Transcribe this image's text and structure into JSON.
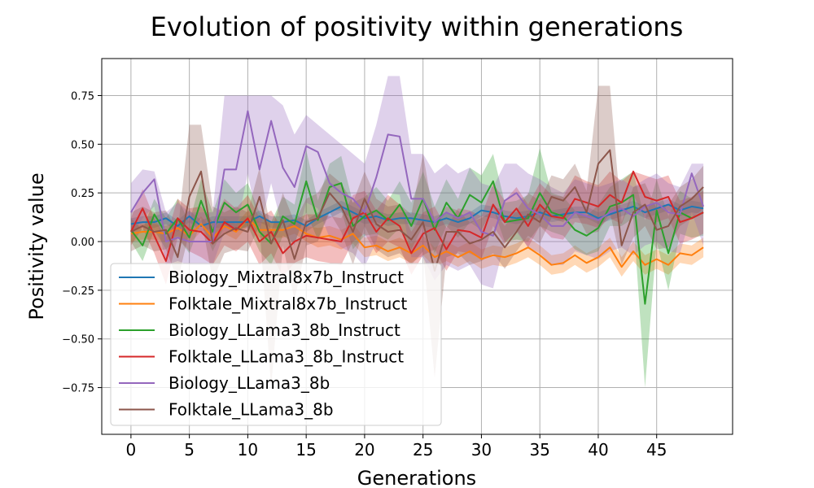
{
  "chart_data": {
    "type": "line",
    "title": "Evolution of positivity within generations",
    "xlabel": "Generations",
    "ylabel": "Positivity value",
    "xlim": [
      -2.5,
      51.5
    ],
    "ylim": [
      -0.99,
      0.94
    ],
    "xticks": [
      0,
      5,
      10,
      15,
      20,
      25,
      30,
      35,
      40,
      45
    ],
    "yticks": [
      -0.75,
      -0.5,
      -0.25,
      0.0,
      0.25,
      0.5,
      0.75
    ],
    "ytick_labels": [
      "−0.75",
      "−0.50",
      "−0.25",
      "0.00",
      "0.25",
      "0.50",
      "0.75"
    ],
    "grid": true,
    "legend_position": "lower-left",
    "x": [
      0,
      1,
      2,
      3,
      4,
      5,
      6,
      7,
      8,
      9,
      10,
      11,
      12,
      13,
      14,
      15,
      16,
      17,
      18,
      19,
      20,
      21,
      22,
      23,
      24,
      25,
      26,
      27,
      28,
      29,
      30,
      31,
      32,
      33,
      34,
      35,
      36,
      37,
      38,
      39,
      40,
      41,
      42,
      43,
      44,
      45,
      46,
      47,
      48,
      49
    ],
    "series": [
      {
        "name": "Biology_Mixtral8x7b_Instruct",
        "color": "#1f77b4",
        "values": [
          0.09,
          0.1,
          0.1,
          0.12,
          0.08,
          0.13,
          0.08,
          0.1,
          0.1,
          0.1,
          0.1,
          0.13,
          0.1,
          0.1,
          0.11,
          0.08,
          0.12,
          0.15,
          0.18,
          0.15,
          0.12,
          0.13,
          0.11,
          0.12,
          0.12,
          0.11,
          0.1,
          0.12,
          0.1,
          0.12,
          0.16,
          0.15,
          0.13,
          0.12,
          0.13,
          0.15,
          0.13,
          0.14,
          0.15,
          0.15,
          0.12,
          0.14,
          0.16,
          0.18,
          0.15,
          0.17,
          0.19,
          0.16,
          0.18,
          0.17
        ],
        "lower": [
          0.06,
          0.07,
          0.07,
          0.09,
          0.05,
          0.1,
          0.05,
          0.07,
          0.07,
          0.07,
          0.07,
          0.1,
          0.07,
          0.07,
          0.08,
          0.05,
          0.09,
          0.12,
          0.15,
          0.12,
          0.09,
          0.1,
          0.08,
          0.09,
          0.09,
          0.08,
          0.07,
          0.09,
          0.07,
          0.09,
          0.13,
          0.12,
          0.1,
          0.09,
          0.1,
          0.12,
          0.1,
          0.11,
          0.12,
          0.12,
          0.09,
          0.11,
          0.13,
          0.15,
          0.12,
          0.14,
          0.16,
          0.13,
          0.15,
          0.14
        ],
        "upper": [
          0.12,
          0.13,
          0.13,
          0.15,
          0.11,
          0.16,
          0.11,
          0.13,
          0.13,
          0.13,
          0.13,
          0.16,
          0.13,
          0.13,
          0.14,
          0.11,
          0.15,
          0.18,
          0.21,
          0.18,
          0.15,
          0.16,
          0.14,
          0.15,
          0.15,
          0.14,
          0.13,
          0.15,
          0.13,
          0.15,
          0.19,
          0.18,
          0.16,
          0.15,
          0.16,
          0.18,
          0.16,
          0.17,
          0.18,
          0.18,
          0.15,
          0.17,
          0.19,
          0.21,
          0.18,
          0.2,
          0.22,
          0.19,
          0.21,
          0.2
        ]
      },
      {
        "name": "Folktale_Mixtral8x7b_Instruct",
        "color": "#ff7f0e",
        "values": [
          0.04,
          0.05,
          0.05,
          0.04,
          0.07,
          0.03,
          0.09,
          0.02,
          0.08,
          0.05,
          0.12,
          0.06,
          0.06,
          0.06,
          0.08,
          0.04,
          0.02,
          0.03,
          0.01,
          0.04,
          -0.03,
          -0.02,
          -0.05,
          -0.03,
          -0.06,
          -0.02,
          -0.08,
          -0.05,
          -0.08,
          -0.05,
          -0.09,
          -0.07,
          -0.08,
          -0.06,
          -0.03,
          -0.07,
          -0.12,
          -0.11,
          -0.07,
          -0.11,
          -0.08,
          -0.03,
          -0.13,
          -0.05,
          -0.12,
          -0.09,
          -0.12,
          -0.06,
          -0.07,
          -0.03
        ],
        "lower": [
          0.0,
          0.01,
          0.01,
          0.0,
          0.03,
          -0.01,
          0.05,
          -0.02,
          0.04,
          0.01,
          0.08,
          0.02,
          0.02,
          0.02,
          0.04,
          0.0,
          -0.03,
          -0.02,
          -0.04,
          -0.01,
          -0.08,
          -0.07,
          -0.1,
          -0.08,
          -0.11,
          -0.07,
          -0.13,
          -0.1,
          -0.13,
          -0.1,
          -0.14,
          -0.12,
          -0.13,
          -0.11,
          -0.08,
          -0.12,
          -0.17,
          -0.16,
          -0.12,
          -0.16,
          -0.13,
          -0.08,
          -0.18,
          -0.1,
          -0.17,
          -0.14,
          -0.17,
          -0.11,
          -0.12,
          -0.08
        ],
        "upper": [
          0.08,
          0.09,
          0.09,
          0.08,
          0.11,
          0.07,
          0.13,
          0.06,
          0.12,
          0.09,
          0.16,
          0.1,
          0.1,
          0.1,
          0.12,
          0.08,
          0.07,
          0.08,
          0.06,
          0.09,
          0.02,
          0.03,
          0.0,
          0.02,
          -0.01,
          0.03,
          -0.03,
          0.0,
          -0.03,
          0.0,
          -0.04,
          -0.02,
          -0.03,
          -0.01,
          0.02,
          -0.02,
          -0.07,
          -0.06,
          -0.02,
          -0.06,
          -0.03,
          0.02,
          -0.08,
          0.0,
          -0.07,
          -0.04,
          -0.07,
          -0.01,
          -0.02,
          0.02
        ]
      },
      {
        "name": "Biology_LLama3_8b_Instruct",
        "color": "#2ca02c",
        "values": [
          0.06,
          -0.02,
          0.14,
          0.04,
          0.12,
          0.02,
          0.21,
          0.05,
          0.2,
          0.15,
          0.19,
          0.05,
          -0.01,
          0.13,
          0.09,
          0.31,
          0.11,
          0.28,
          0.3,
          0.08,
          0.13,
          0.16,
          0.11,
          0.19,
          0.08,
          0.22,
          0.06,
          0.2,
          0.12,
          0.24,
          0.2,
          0.31,
          0.1,
          0.11,
          0.12,
          0.25,
          0.15,
          0.13,
          0.06,
          0.03,
          0.07,
          0.18,
          0.2,
          0.24,
          -0.32,
          0.16,
          -0.06,
          0.15,
          0.12,
          0.15
        ],
        "lower": [
          0.0,
          -0.1,
          0.06,
          -0.04,
          0.02,
          -0.06,
          0.1,
          -0.05,
          0.08,
          0.05,
          0.08,
          -0.05,
          -0.12,
          0.03,
          -0.01,
          0.15,
          0.01,
          0.16,
          0.16,
          -0.04,
          0.03,
          0.04,
          0.01,
          0.07,
          -0.04,
          0.08,
          -0.06,
          0.08,
          0.02,
          0.1,
          0.06,
          0.17,
          0.0,
          0.01,
          0.0,
          0.08,
          0.05,
          0.03,
          -0.04,
          -0.07,
          -0.05,
          0.08,
          0.08,
          0.12,
          -0.75,
          0.0,
          -0.25,
          0.04,
          0.02,
          0.03
        ],
        "upper": [
          0.12,
          0.06,
          0.22,
          0.12,
          0.22,
          0.1,
          0.32,
          0.15,
          0.32,
          0.25,
          0.3,
          0.15,
          0.1,
          0.23,
          0.19,
          0.47,
          0.21,
          0.4,
          0.44,
          0.2,
          0.23,
          0.28,
          0.21,
          0.31,
          0.2,
          0.36,
          0.18,
          0.32,
          0.22,
          0.38,
          0.34,
          0.45,
          0.2,
          0.21,
          0.24,
          0.48,
          0.25,
          0.23,
          0.16,
          0.13,
          0.19,
          0.28,
          0.32,
          0.36,
          0.11,
          0.32,
          0.13,
          0.26,
          0.22,
          0.27
        ]
      },
      {
        "name": "Folktale_LLama3_8b_Instruct",
        "color": "#d62728",
        "values": [
          0.05,
          0.17,
          0.03,
          -0.1,
          0.12,
          0.06,
          0.05,
          -0.01,
          0.1,
          0.06,
          0.12,
          0.0,
          0.05,
          -0.06,
          0.0,
          0.03,
          0.02,
          0.01,
          0.0,
          0.12,
          0.15,
          0.05,
          0.12,
          0.08,
          -0.06,
          0.04,
          0.07,
          -0.04,
          0.06,
          0.05,
          0.02,
          0.19,
          0.1,
          0.17,
          0.08,
          0.19,
          0.13,
          0.12,
          0.22,
          0.2,
          0.18,
          0.24,
          0.2,
          0.36,
          0.23,
          0.21,
          0.23,
          0.1,
          0.12,
          0.15
        ],
        "lower": [
          -0.02,
          0.07,
          -0.06,
          -0.22,
          0.02,
          -0.05,
          -0.08,
          -0.12,
          -0.02,
          -0.05,
          0.0,
          -0.12,
          -0.06,
          -0.18,
          -0.11,
          -0.08,
          -0.1,
          -0.11,
          -0.12,
          0.0,
          0.04,
          -0.06,
          0.0,
          -0.03,
          -0.17,
          -0.07,
          -0.04,
          -0.15,
          -0.05,
          -0.06,
          -0.09,
          0.08,
          -0.01,
          0.06,
          -0.03,
          0.08,
          0.02,
          0.01,
          0.1,
          0.09,
          0.07,
          0.12,
          0.09,
          0.24,
          0.12,
          0.1,
          0.12,
          -0.01,
          0.01,
          0.04
        ],
        "upper": [
          0.12,
          0.27,
          0.12,
          0.02,
          0.22,
          0.17,
          0.18,
          0.1,
          0.22,
          0.17,
          0.24,
          0.12,
          0.16,
          0.06,
          0.11,
          0.14,
          0.14,
          0.13,
          0.12,
          0.24,
          0.26,
          0.16,
          0.24,
          0.19,
          0.05,
          0.15,
          0.18,
          0.07,
          0.17,
          0.16,
          0.13,
          0.3,
          0.21,
          0.28,
          0.19,
          0.3,
          0.24,
          0.23,
          0.34,
          0.31,
          0.29,
          0.36,
          0.31,
          0.36,
          0.34,
          0.32,
          0.34,
          0.21,
          0.23,
          0.26
        ]
      },
      {
        "name": "Biology_LLama3_8b",
        "color": "#9467bd",
        "values": [
          0.15,
          0.25,
          0.32,
          0.0,
          0.02,
          0.0,
          0.0,
          0.0,
          0.37,
          0.37,
          0.67,
          0.37,
          0.62,
          0.38,
          0.28,
          0.49,
          0.46,
          0.3,
          0.25,
          0.22,
          0.15,
          0.33,
          0.55,
          0.54,
          0.22,
          0.22,
          0.1,
          0.15,
          0.12,
          0.15,
          0.05,
          0.03,
          0.21,
          0.25,
          0.17,
          0.14,
          0.08,
          0.08,
          0.15,
          0.13,
          0.11,
          0.15,
          0.17,
          0.13,
          0.18,
          0.2,
          0.15,
          0.14,
          0.35,
          0.18
        ],
        "lower": [
          0.02,
          0.12,
          0.18,
          -0.12,
          -0.1,
          -0.12,
          -0.12,
          -0.12,
          0.05,
          0.05,
          0.35,
          0.05,
          0.3,
          0.06,
          -0.02,
          0.2,
          0.17,
          0.02,
          -0.03,
          -0.06,
          -0.13,
          0.0,
          0.25,
          0.24,
          -0.08,
          -0.08,
          -0.2,
          -0.12,
          -0.15,
          -0.12,
          -0.22,
          -0.24,
          0.0,
          0.05,
          -0.03,
          -0.06,
          -0.12,
          -0.12,
          -0.05,
          -0.07,
          -0.09,
          -0.05,
          -0.03,
          -0.07,
          -0.02,
          0.0,
          -0.05,
          -0.06,
          0.15,
          -0.02
        ],
        "upper": [
          0.3,
          0.37,
          0.36,
          0.15,
          0.2,
          0.15,
          0.15,
          0.15,
          0.75,
          0.75,
          0.75,
          0.75,
          0.75,
          0.7,
          0.55,
          0.65,
          0.6,
          0.55,
          0.5,
          0.45,
          0.4,
          0.6,
          0.85,
          0.85,
          0.45,
          0.45,
          0.35,
          0.4,
          0.35,
          0.38,
          0.3,
          0.28,
          0.4,
          0.4,
          0.35,
          0.32,
          0.28,
          0.25,
          0.32,
          0.3,
          0.28,
          0.3,
          0.32,
          0.28,
          0.32,
          0.35,
          0.3,
          0.28,
          0.4,
          0.4
        ]
      },
      {
        "name": "Folktale_LLama3_8b",
        "color": "#8c564b",
        "values": [
          0.05,
          0.08,
          0.05,
          0.06,
          -0.08,
          0.23,
          0.36,
          -0.01,
          0.04,
          0.07,
          0.05,
          0.23,
          -0.01,
          0.11,
          -0.09,
          0.1,
          0.12,
          0.25,
          0.18,
          0.05,
          0.22,
          0.09,
          0.05,
          0.06,
          0.01,
          0.1,
          -0.15,
          0.05,
          0.05,
          -0.01,
          0.01,
          0.05,
          -0.03,
          0.05,
          0.14,
          0.1,
          0.23,
          0.21,
          0.28,
          0.15,
          0.4,
          0.47,
          -0.02,
          0.15,
          0.19,
          0.06,
          0.08,
          0.18,
          0.22,
          0.28
        ],
        "lower": [
          -0.05,
          -0.02,
          -0.05,
          -0.04,
          -0.2,
          0.05,
          0.12,
          -0.2,
          -0.06,
          -0.04,
          -0.05,
          0.08,
          -0.75,
          -0.02,
          -0.3,
          -0.02,
          0.0,
          0.15,
          0.05,
          -0.12,
          0.08,
          -0.04,
          -0.08,
          -0.06,
          -0.12,
          -0.05,
          -0.7,
          -0.08,
          -0.06,
          -0.12,
          -0.1,
          -0.06,
          -0.14,
          -0.05,
          0.03,
          -0.01,
          0.12,
          0.1,
          0.16,
          0.04,
          0.05,
          0.15,
          -0.12,
          0.02,
          0.08,
          -0.04,
          -0.03,
          0.08,
          0.12,
          0.17
        ],
        "upper": [
          0.15,
          0.18,
          0.15,
          0.16,
          0.05,
          0.6,
          0.6,
          0.18,
          0.15,
          0.18,
          0.15,
          0.38,
          0.05,
          0.25,
          0.1,
          0.22,
          0.25,
          0.35,
          0.3,
          0.2,
          0.36,
          0.22,
          0.18,
          0.19,
          0.14,
          0.45,
          0.1,
          0.18,
          0.16,
          0.1,
          0.12,
          0.16,
          0.08,
          0.16,
          0.25,
          0.21,
          0.34,
          0.32,
          0.4,
          0.26,
          0.8,
          0.8,
          0.1,
          0.28,
          0.3,
          0.17,
          0.19,
          0.28,
          0.32,
          0.39
        ]
      }
    ]
  }
}
